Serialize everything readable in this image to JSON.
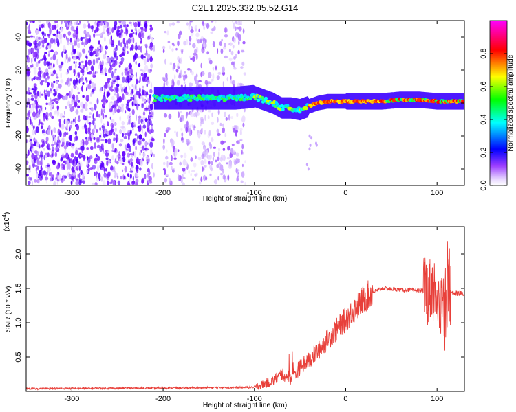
{
  "title": "C2E1.2025.332.05.52.G14",
  "chart_data": [
    {
      "type": "heatmap",
      "xlabel": "Height of straight line (km)",
      "ylabel": "Frequency (Hz)",
      "xlim": [
        -350,
        130
      ],
      "ylim": [
        -50,
        50
      ],
      "x_ticks": [
        -300,
        -200,
        -100,
        0,
        100
      ],
      "y_ticks": [
        -40,
        -20,
        0,
        20,
        40
      ],
      "colorbar": {
        "label": "Normalized spectral amplitude",
        "range": [
          0,
          1
        ],
        "ticks": [
          "0.0",
          "0.2",
          "0.4",
          "0.6",
          "0.8"
        ],
        "colormap": [
          "#ffffff",
          "#d8b8ff",
          "#7a00ff",
          "#0000ff",
          "#00ffff",
          "#00ff00",
          "#ffff00",
          "#ff0000",
          "#ff00ff"
        ]
      },
      "ridge": {
        "x": [
          -210,
          -180,
          -150,
          -120,
          -100,
          -90,
          -80,
          -70,
          -60,
          -50,
          -40,
          -30,
          -20,
          0,
          20,
          40,
          60,
          80,
          100,
          130
        ],
        "freq": [
          3,
          3,
          3,
          3,
          4,
          2,
          0,
          -3,
          -3,
          -4,
          -2,
          0,
          1,
          1,
          1,
          1,
          2,
          2,
          1,
          1
        ]
      },
      "noise_regions": [
        [
          -350,
          -210
        ],
        [
          -200,
          -110
        ]
      ]
    },
    {
      "type": "line",
      "xlabel": "Height of straight line (km)",
      "ylabel": "SNR (10 * v/v)",
      "y_multiplier": "(x10",
      "y_multiplier_exp": "4",
      "y_multiplier_close": ")",
      "xlim": [
        -350,
        130
      ],
      "ylim": [
        0,
        2.4
      ],
      "x_ticks": [
        -300,
        -200,
        -100,
        0,
        100
      ],
      "y_ticks": [
        "0.5",
        "1.0",
        "1.5",
        "2.0"
      ],
      "series": [
        {
          "color": "#e8403a",
          "x": [
            -350,
            -200,
            -100,
            -80,
            -70,
            -60,
            -50,
            -40,
            -30,
            -20,
            -10,
            0,
            10,
            20,
            30,
            40,
            60,
            80,
            90,
            95,
            100,
            105,
            110,
            115,
            120,
            130
          ],
          "y": [
            0.04,
            0.05,
            0.06,
            0.15,
            0.25,
            0.2,
            0.35,
            0.45,
            0.6,
            0.75,
            0.9,
            1.05,
            1.2,
            1.35,
            1.45,
            1.5,
            1.48,
            1.47,
            1.46,
            1.5,
            1.45,
            1.2,
            1.4,
            1.45,
            1.43,
            1.42
          ]
        }
      ]
    }
  ]
}
